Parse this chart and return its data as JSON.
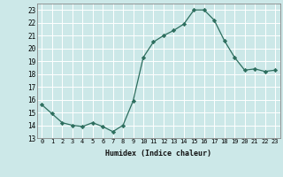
{
  "x": [
    0,
    1,
    2,
    3,
    4,
    5,
    6,
    7,
    8,
    9,
    10,
    11,
    12,
    13,
    14,
    15,
    16,
    17,
    18,
    19,
    20,
    21,
    22,
    23
  ],
  "y": [
    15.6,
    14.9,
    14.2,
    14.0,
    13.9,
    14.2,
    13.9,
    13.5,
    14.0,
    15.9,
    19.3,
    20.5,
    21.0,
    21.4,
    21.9,
    23.0,
    23.0,
    22.2,
    20.6,
    19.3,
    18.3,
    18.4,
    18.2,
    18.3
  ],
  "xlabel": "Humidex (Indice chaleur)",
  "ylim": [
    13,
    23.5
  ],
  "xlim": [
    -0.5,
    23.5
  ],
  "yticks": [
    13,
    14,
    15,
    16,
    17,
    18,
    19,
    20,
    21,
    22,
    23
  ],
  "xticks": [
    0,
    1,
    2,
    3,
    4,
    5,
    6,
    7,
    8,
    9,
    10,
    11,
    12,
    13,
    14,
    15,
    16,
    17,
    18,
    19,
    20,
    21,
    22,
    23
  ],
  "line_color": "#2d6e5e",
  "marker_color": "#2d6e5e",
  "bg_color": "#cce8e8",
  "grid_color": "#ffffff",
  "spine_color": "#888888"
}
